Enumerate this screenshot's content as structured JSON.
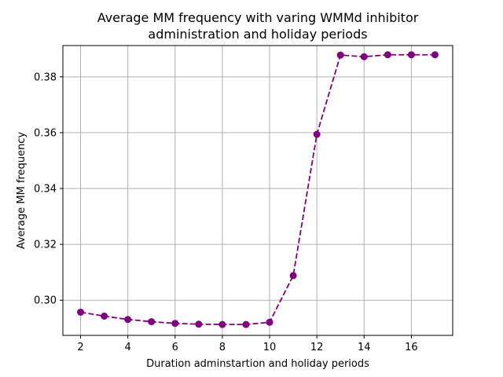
{
  "chart_data": {
    "type": "line",
    "title": "Average MM frequency with varing WMMd inhibitor\nadministration and holiday periods",
    "xlabel": "Duration adminstartion and holiday periods",
    "ylabel": "Average MM frequency",
    "xlim": [
      1.25,
      17.75
    ],
    "ylim": [
      0.2874,
      0.3912
    ],
    "xticks": [
      2,
      4,
      6,
      8,
      10,
      12,
      14,
      16
    ],
    "yticks": [
      0.3,
      0.32,
      0.34,
      0.36,
      0.38
    ],
    "xtick_labels": [
      "2",
      "4",
      "6",
      "8",
      "10",
      "12",
      "14",
      "16"
    ],
    "ytick_labels": [
      "0.30",
      "0.32",
      "0.34",
      "0.36",
      "0.38"
    ],
    "grid": true,
    "series": [
      {
        "color": "#800080",
        "linestyle": "dashed",
        "marker": "circle",
        "x": [
          2,
          3,
          4,
          5,
          6,
          7,
          8,
          9,
          10,
          11,
          12,
          13,
          14,
          15,
          16,
          17
        ],
        "values": [
          0.2957,
          0.2943,
          0.2931,
          0.2923,
          0.2917,
          0.2914,
          0.2913,
          0.2913,
          0.2921,
          0.3088,
          0.3594,
          0.3878,
          0.3872,
          0.3879,
          0.3879,
          0.3879
        ]
      }
    ]
  }
}
